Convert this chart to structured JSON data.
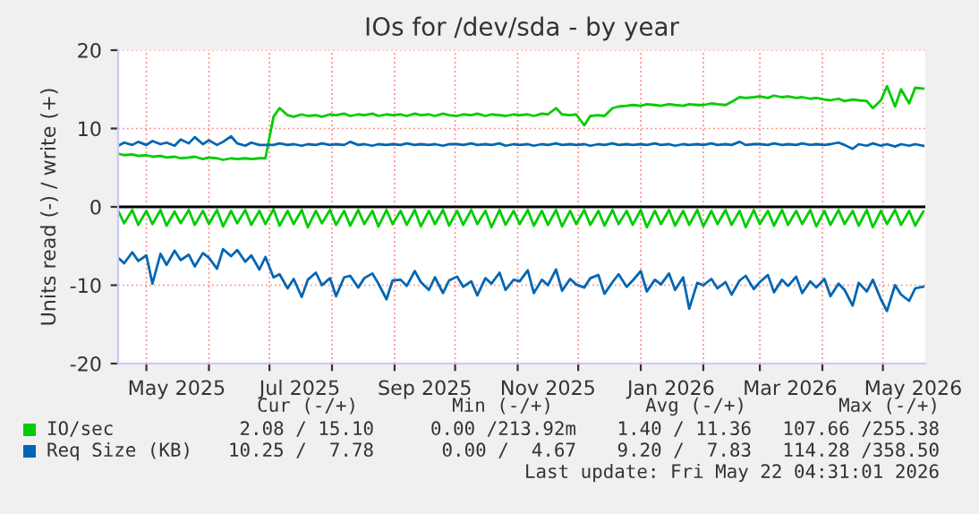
{
  "chart_data": {
    "type": "line",
    "title": "IOs for /dev/sda - by year",
    "ylabel": "Units read (-) / write (+)",
    "x": [
      "2025-04-17",
      "2025-04-20",
      "2025-04-24",
      "2025-04-27",
      "2025-05-01",
      "2025-05-04",
      "2025-05-08",
      "2025-05-11",
      "2025-05-15",
      "2025-05-18",
      "2025-05-22",
      "2025-05-25",
      "2025-05-29",
      "2025-06-01",
      "2025-06-05",
      "2025-06-08",
      "2025-06-12",
      "2025-06-15",
      "2025-06-19",
      "2025-06-22",
      "2025-06-26",
      "2025-06-29",
      "2025-07-03",
      "2025-07-06",
      "2025-07-10",
      "2025-07-13",
      "2025-07-17",
      "2025-07-20",
      "2025-07-24",
      "2025-07-27",
      "2025-07-31",
      "2025-08-03",
      "2025-08-07",
      "2025-08-10",
      "2025-08-14",
      "2025-08-17",
      "2025-08-21",
      "2025-08-24",
      "2025-08-28",
      "2025-08-31",
      "2025-09-04",
      "2025-09-07",
      "2025-09-11",
      "2025-09-14",
      "2025-09-18",
      "2025-09-21",
      "2025-09-25",
      "2025-09-28",
      "2025-10-02",
      "2025-10-05",
      "2025-10-09",
      "2025-10-12",
      "2025-10-16",
      "2025-10-19",
      "2025-10-23",
      "2025-10-26",
      "2025-10-30",
      "2025-11-02",
      "2025-11-06",
      "2025-11-09",
      "2025-11-13",
      "2025-11-16",
      "2025-11-20",
      "2025-11-23",
      "2025-11-27",
      "2025-11-30",
      "2025-12-04",
      "2025-12-07",
      "2025-12-11",
      "2025-12-14",
      "2025-12-18",
      "2025-12-21",
      "2025-12-25",
      "2025-12-28",
      "2026-01-01",
      "2026-01-04",
      "2026-01-08",
      "2026-01-11",
      "2026-01-15",
      "2026-01-18",
      "2026-01-22",
      "2026-01-25",
      "2026-01-29",
      "2026-02-01",
      "2026-02-05",
      "2026-02-08",
      "2026-02-12",
      "2026-02-15",
      "2026-02-19",
      "2026-02-22",
      "2026-02-26",
      "2026-03-01",
      "2026-03-05",
      "2026-03-08",
      "2026-03-12",
      "2026-03-15",
      "2026-03-19",
      "2026-03-22",
      "2026-03-26",
      "2026-03-29",
      "2026-04-02",
      "2026-04-05",
      "2026-04-09",
      "2026-04-12",
      "2026-04-16",
      "2026-04-19",
      "2026-04-23",
      "2026-04-26",
      "2026-04-30",
      "2026-05-03",
      "2026-05-07",
      "2026-05-10",
      "2026-05-14",
      "2026-05-17",
      "2026-05-21"
    ],
    "series": [
      {
        "name": "IO/sec",
        "color": "#00cc00",
        "values": [
          6.8,
          6.6,
          6.7,
          6.5,
          6.6,
          6.4,
          6.5,
          6.3,
          6.4,
          6.2,
          6.3,
          6.4,
          6.1,
          6.3,
          6.2,
          6.0,
          6.2,
          6.1,
          6.2,
          6.1,
          6.2,
          6.2,
          11.5,
          12.6,
          11.7,
          11.5,
          11.8,
          11.6,
          11.7,
          11.5,
          11.8,
          11.7,
          11.9,
          11.6,
          11.8,
          11.7,
          11.9,
          11.6,
          11.8,
          11.7,
          11.8,
          11.6,
          11.9,
          11.7,
          11.8,
          11.6,
          11.9,
          11.7,
          11.6,
          11.8,
          11.7,
          11.9,
          11.6,
          11.8,
          11.7,
          11.6,
          11.8,
          11.7,
          11.8,
          11.6,
          11.9,
          11.8,
          12.6,
          11.8,
          11.7,
          11.8,
          10.4,
          11.6,
          11.7,
          11.6,
          12.6,
          12.8,
          12.9,
          13.0,
          12.9,
          13.1,
          13.0,
          12.9,
          13.1,
          13.0,
          12.9,
          13.1,
          13.0,
          13.0,
          13.2,
          13.1,
          13.0,
          13.4,
          14.0,
          13.9,
          14.0,
          14.1,
          13.9,
          14.2,
          14.0,
          14.1,
          13.9,
          14.0,
          13.8,
          13.9,
          13.7,
          13.6,
          13.8,
          13.5,
          13.7,
          13.6,
          13.5,
          12.6,
          13.6,
          15.4,
          12.8,
          15.0,
          13.2,
          15.2,
          15.1
        ]
      },
      {
        "color": "#00cc00",
        "values": [
          -0.5,
          -2.1,
          -0.4,
          -2.3,
          -0.5,
          -2.2,
          -0.4,
          -2.4,
          -0.6,
          -2.1,
          -0.4,
          -2.3,
          -0.5,
          -2.2,
          -0.4,
          -2.5,
          -0.5,
          -2.1,
          -0.4,
          -2.3,
          -0.5,
          -2.2,
          -0.3,
          -2.4,
          -0.5,
          -2.2,
          -0.4,
          -2.6,
          -0.5,
          -2.1,
          -0.4,
          -2.3,
          -0.5,
          -2.4,
          -0.4,
          -2.2,
          -0.5,
          -2.5,
          -0.4,
          -2.2,
          -0.5,
          -2.3,
          -0.4,
          -2.5,
          -0.5,
          -2.2,
          -0.4,
          -2.4,
          -0.5,
          -2.3,
          -0.4,
          -2.2,
          -0.5,
          -2.6,
          -0.4,
          -2.3,
          -0.5,
          -2.2,
          -0.4,
          -2.4,
          -0.5,
          -2.3,
          -0.4,
          -2.5,
          -0.5,
          -2.2,
          -0.4,
          -2.3,
          -0.5,
          -2.4,
          -0.4,
          -2.2,
          -0.5,
          -2.3,
          -0.4,
          -2.6,
          -0.5,
          -2.2,
          -0.4,
          -2.4,
          -0.5,
          -2.3,
          -0.4,
          -2.5,
          -0.5,
          -2.2,
          -0.4,
          -2.3,
          -0.5,
          -2.6,
          -0.4,
          -2.2,
          -0.5,
          -2.4,
          -0.4,
          -2.3,
          -0.5,
          -2.2,
          -0.4,
          -2.5,
          -0.5,
          -2.3,
          -0.4,
          -2.2,
          -0.5,
          -2.4,
          -0.4,
          -2.6,
          -0.5,
          -2.2,
          -0.4,
          -2.3,
          -0.5,
          -2.4,
          -0.6
        ]
      },
      {
        "name": "Req Size (KB)",
        "color": "#0066b3",
        "values": [
          7.8,
          8.2,
          7.9,
          8.3,
          7.9,
          8.4,
          8.0,
          8.2,
          7.8,
          8.6,
          8.1,
          8.9,
          8.0,
          8.5,
          7.9,
          8.3,
          9.0,
          8.1,
          7.8,
          8.2,
          7.9,
          7.9,
          7.9,
          8.1,
          7.9,
          8.0,
          7.8,
          8.0,
          7.9,
          8.1,
          7.9,
          8.0,
          7.9,
          8.3,
          7.9,
          8.0,
          7.8,
          8.0,
          7.9,
          8.0,
          7.9,
          8.1,
          7.9,
          8.0,
          7.9,
          8.0,
          7.8,
          8.0,
          8.0,
          7.9,
          8.1,
          7.9,
          8.0,
          7.9,
          8.1,
          7.8,
          8.0,
          7.9,
          8.0,
          7.8,
          8.0,
          7.9,
          8.1,
          7.9,
          8.0,
          7.9,
          8.0,
          7.8,
          8.0,
          7.9,
          8.1,
          7.9,
          8.0,
          7.9,
          8.0,
          7.9,
          8.1,
          7.9,
          8.0,
          7.8,
          8.0,
          7.9,
          8.0,
          7.9,
          8.1,
          7.9,
          8.0,
          7.9,
          8.3,
          7.9,
          8.0,
          8.0,
          7.9,
          8.1,
          7.9,
          8.0,
          7.9,
          8.1,
          7.9,
          8.0,
          7.9,
          8.0,
          8.2,
          7.9,
          7.4,
          8.0,
          7.8,
          8.1,
          7.8,
          8.0,
          7.7,
          8.0,
          7.8,
          8.0,
          7.8
        ]
      },
      {
        "color": "#0066b3",
        "values": [
          -6.5,
          -7.2,
          -5.8,
          -6.9,
          -6.2,
          -9.8,
          -6.0,
          -7.4,
          -5.6,
          -6.8,
          -6.1,
          -7.6,
          -5.9,
          -6.5,
          -7.9,
          -5.4,
          -6.3,
          -5.5,
          -7.0,
          -6.2,
          -8.0,
          -6.4,
          -9.0,
          -8.6,
          -10.4,
          -9.2,
          -11.5,
          -9.3,
          -8.4,
          -10.0,
          -9.1,
          -11.4,
          -9.0,
          -8.8,
          -10.3,
          -9.1,
          -8.5,
          -9.8,
          -11.8,
          -9.4,
          -9.3,
          -10.1,
          -8.2,
          -9.6,
          -10.6,
          -9.0,
          -11.0,
          -9.4,
          -8.9,
          -10.2,
          -9.5,
          -11.3,
          -9.1,
          -9.8,
          -8.4,
          -10.6,
          -9.3,
          -9.5,
          -8.1,
          -11.0,
          -9.3,
          -10.0,
          -8.0,
          -10.7,
          -9.2,
          -9.9,
          -10.3,
          -9.1,
          -8.7,
          -11.1,
          -9.6,
          -8.6,
          -10.2,
          -9.4,
          -8.2,
          -10.8,
          -9.3,
          -9.9,
          -8.5,
          -10.6,
          -9.0,
          -13.0,
          -9.7,
          -10.0,
          -9.2,
          -10.4,
          -9.6,
          -11.2,
          -9.4,
          -8.8,
          -10.5,
          -9.6,
          -8.7,
          -10.9,
          -9.3,
          -10.1,
          -8.9,
          -11.0,
          -9.5,
          -10.3,
          -9.2,
          -11.4,
          -9.8,
          -10.6,
          -12.6,
          -9.7,
          -10.8,
          -9.3,
          -11.8,
          -13.3,
          -10.0,
          -11.2,
          -12.0,
          -10.4,
          -10.2
        ]
      }
    ],
    "xlim": [
      "2025-04-17",
      "2026-05-22"
    ],
    "xticks": [
      {
        "value": "2025-05-01",
        "label": null
      },
      {
        "value": "2025-05-16",
        "label": "May 2025"
      },
      {
        "value": "2025-06-01",
        "label": null
      },
      {
        "value": "2025-07-01",
        "label": null
      },
      {
        "value": "2025-07-16",
        "label": "Jul 2025"
      },
      {
        "value": "2025-08-01",
        "label": null
      },
      {
        "value": "2025-09-01",
        "label": null
      },
      {
        "value": "2025-09-16",
        "label": "Sep 2025"
      },
      {
        "value": "2025-10-01",
        "label": null
      },
      {
        "value": "2025-11-01",
        "label": null
      },
      {
        "value": "2025-11-16",
        "label": "Nov 2025"
      },
      {
        "value": "2025-12-01",
        "label": null
      },
      {
        "value": "2026-01-01",
        "label": null
      },
      {
        "value": "2026-01-16",
        "label": "Jan 2026"
      },
      {
        "value": "2026-02-01",
        "label": null
      },
      {
        "value": "2026-03-01",
        "label": null
      },
      {
        "value": "2026-03-16",
        "label": "Mar 2026"
      },
      {
        "value": "2026-04-01",
        "label": null
      },
      {
        "value": "2026-05-01",
        "label": null
      },
      {
        "value": "2026-05-16",
        "label": "May 2026"
      }
    ],
    "ylim": [
      -20,
      20
    ],
    "yticks": [
      -20,
      -10,
      0,
      10,
      20
    ],
    "ref_lines": [
      {
        "axis": "y",
        "value": 0,
        "color": "#000000"
      }
    ],
    "grid": true,
    "legend": "bottom",
    "annotations": [
      "Cur (-/+)",
      "Min (-/+)",
      "Avg (-/+)",
      "Max (-/+)",
      "2.08 / 15.10",
      "0.00 /213.92m",
      "1.40 / 11.36",
      "107.66 /255.38",
      "10.25 /  7.78",
      "0.00 /  4.67",
      "9.20 /  7.83",
      "114.28 /358.50",
      "Last update: Fri May 22 04:31:01 2026"
    ]
  }
}
